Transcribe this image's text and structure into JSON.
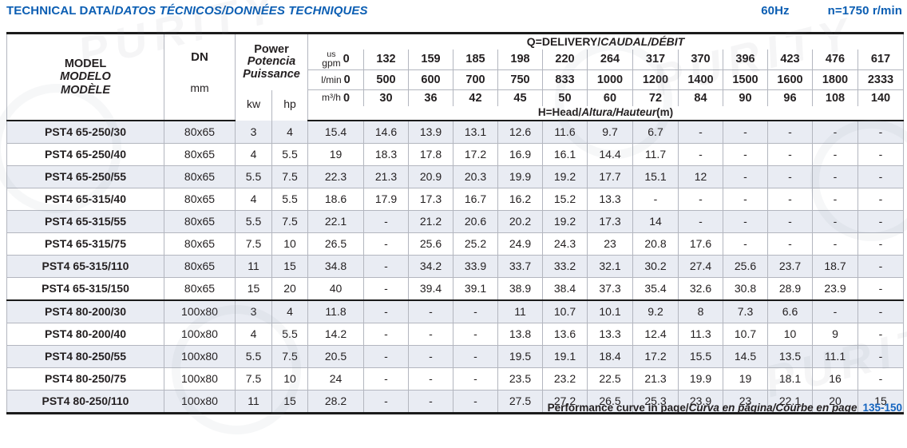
{
  "header": {
    "title": {
      "en": "TECHNICAL DATA/",
      "intl": "DATOS TÉCNICOS/DONNÉES TECHNIQUES"
    },
    "frequency": "60Hz",
    "speed": "n=1750 r/min"
  },
  "colors": {
    "accent_blue": "#0b5eb3",
    "page_ref_blue": "#1565c0",
    "row_shade": "#e9ecf3"
  },
  "watermark": {
    "text": "PURITY"
  },
  "table": {
    "model_header": [
      "MODEL",
      "MODELO",
      "MODÈLE"
    ],
    "dn": {
      "label": "DN",
      "unit": "mm"
    },
    "power": {
      "labels": [
        "Power",
        "Potencia",
        "Puissance"
      ],
      "kw": "kw",
      "hp": "hp"
    },
    "q_header": {
      "en": "Q=DELIVERY/",
      "intl": "CAUDAL/DÉBIT"
    },
    "h_header": {
      "en": "H=Head/",
      "intl": "Altura/Hauteur",
      "unit": "(m)"
    },
    "unit_rows": [
      {
        "label_top": "us",
        "label": "gpm",
        "zero": "0",
        "values": [
          "132",
          "159",
          "185",
          "198",
          "220",
          "264",
          "317",
          "370",
          "396",
          "423",
          "476",
          "617"
        ]
      },
      {
        "label": "l/min",
        "zero": "0",
        "values": [
          "500",
          "600",
          "700",
          "750",
          "833",
          "1000",
          "1200",
          "1400",
          "1500",
          "1600",
          "1800",
          "2333"
        ]
      },
      {
        "label": "m³/h",
        "zero": "0",
        "values": [
          "30",
          "36",
          "42",
          "45",
          "50",
          "60",
          "72",
          "84",
          "90",
          "96",
          "108",
          "140"
        ]
      }
    ],
    "rows": [
      {
        "model": "PST4 65-250/30",
        "dn": "80x65",
        "kw": "3",
        "hp": "4",
        "head": [
          "15.4",
          "14.6",
          "13.9",
          "13.1",
          "12.6",
          "11.6",
          "9.7",
          "6.7",
          "-",
          "-",
          "-",
          "-",
          "-"
        ]
      },
      {
        "model": "PST4 65-250/40",
        "dn": "80x65",
        "kw": "4",
        "hp": "5.5",
        "head": [
          "19",
          "18.3",
          "17.8",
          "17.2",
          "16.9",
          "16.1",
          "14.4",
          "11.7",
          "-",
          "-",
          "-",
          "-",
          "-"
        ]
      },
      {
        "model": "PST4 65-250/55",
        "dn": "80x65",
        "kw": "5.5",
        "hp": "7.5",
        "head": [
          "22.3",
          "21.3",
          "20.9",
          "20.3",
          "19.9",
          "19.2",
          "17.7",
          "15.1",
          "12",
          "-",
          "-",
          "-",
          "-"
        ]
      },
      {
        "model": "PST4 65-315/40",
        "dn": "80x65",
        "kw": "4",
        "hp": "5.5",
        "head": [
          "18.6",
          "17.9",
          "17.3",
          "16.7",
          "16.2",
          "15.2",
          "13.3",
          "-",
          "-",
          "-",
          "-",
          "-",
          "-"
        ]
      },
      {
        "model": "PST4 65-315/55",
        "dn": "80x65",
        "kw": "5.5",
        "hp": "7.5",
        "head": [
          "22.1",
          "-",
          "21.2",
          "20.6",
          "20.2",
          "19.2",
          "17.3",
          "14",
          "-",
          "-",
          "-",
          "-",
          "-"
        ]
      },
      {
        "model": "PST4 65-315/75",
        "dn": "80x65",
        "kw": "7.5",
        "hp": "10",
        "head": [
          "26.5",
          "-",
          "25.6",
          "25.2",
          "24.9",
          "24.3",
          "23",
          "20.8",
          "17.6",
          "-",
          "-",
          "-",
          "-"
        ]
      },
      {
        "model": "PST4 65-315/110",
        "dn": "80x65",
        "kw": "11",
        "hp": "15",
        "head": [
          "34.8",
          "-",
          "34.2",
          "33.9",
          "33.7",
          "33.2",
          "32.1",
          "30.2",
          "27.4",
          "25.6",
          "23.7",
          "18.7",
          "-"
        ]
      },
      {
        "model": "PST4 65-315/150",
        "dn": "80x65",
        "kw": "15",
        "hp": "20",
        "head": [
          "40",
          "-",
          "39.4",
          "39.1",
          "38.9",
          "38.4",
          "37.3",
          "35.4",
          "32.6",
          "30.8",
          "28.9",
          "23.9",
          "-"
        ]
      },
      {
        "model": "PST4 80-200/30",
        "dn": "100x80",
        "kw": "3",
        "hp": "4",
        "group_start": true,
        "head": [
          "11.8",
          "-",
          "-",
          "-",
          "11",
          "10.7",
          "10.1",
          "9.2",
          "8",
          "7.3",
          "6.6",
          "-",
          "-"
        ]
      },
      {
        "model": "PST4 80-200/40",
        "dn": "100x80",
        "kw": "4",
        "hp": "5.5",
        "head": [
          "14.2",
          "-",
          "-",
          "-",
          "13.8",
          "13.6",
          "13.3",
          "12.4",
          "11.3",
          "10.7",
          "10",
          "9",
          "-"
        ]
      },
      {
        "model": "PST4 80-250/55",
        "dn": "100x80",
        "kw": "5.5",
        "hp": "7.5",
        "head": [
          "20.5",
          "-",
          "-",
          "-",
          "19.5",
          "19.1",
          "18.4",
          "17.2",
          "15.5",
          "14.5",
          "13.5",
          "11.1",
          "-"
        ]
      },
      {
        "model": "PST4 80-250/75",
        "dn": "100x80",
        "kw": "7.5",
        "hp": "10",
        "head": [
          "24",
          "-",
          "-",
          "-",
          "23.5",
          "23.2",
          "22.5",
          "21.3",
          "19.9",
          "19",
          "18.1",
          "16",
          "-"
        ]
      },
      {
        "model": "PST4 80-250/110",
        "dn": "100x80",
        "kw": "11",
        "hp": "15",
        "head": [
          "28.2",
          "-",
          "-",
          "-",
          "27.5",
          "27.2",
          "26.5",
          "25.3",
          "23.9",
          "23",
          "22.1",
          "20",
          "15"
        ]
      }
    ]
  },
  "footer": {
    "text_en": "Performance curve in page/",
    "text_intl": "Curva en página/Courbe en page",
    "pages": "135-150"
  }
}
